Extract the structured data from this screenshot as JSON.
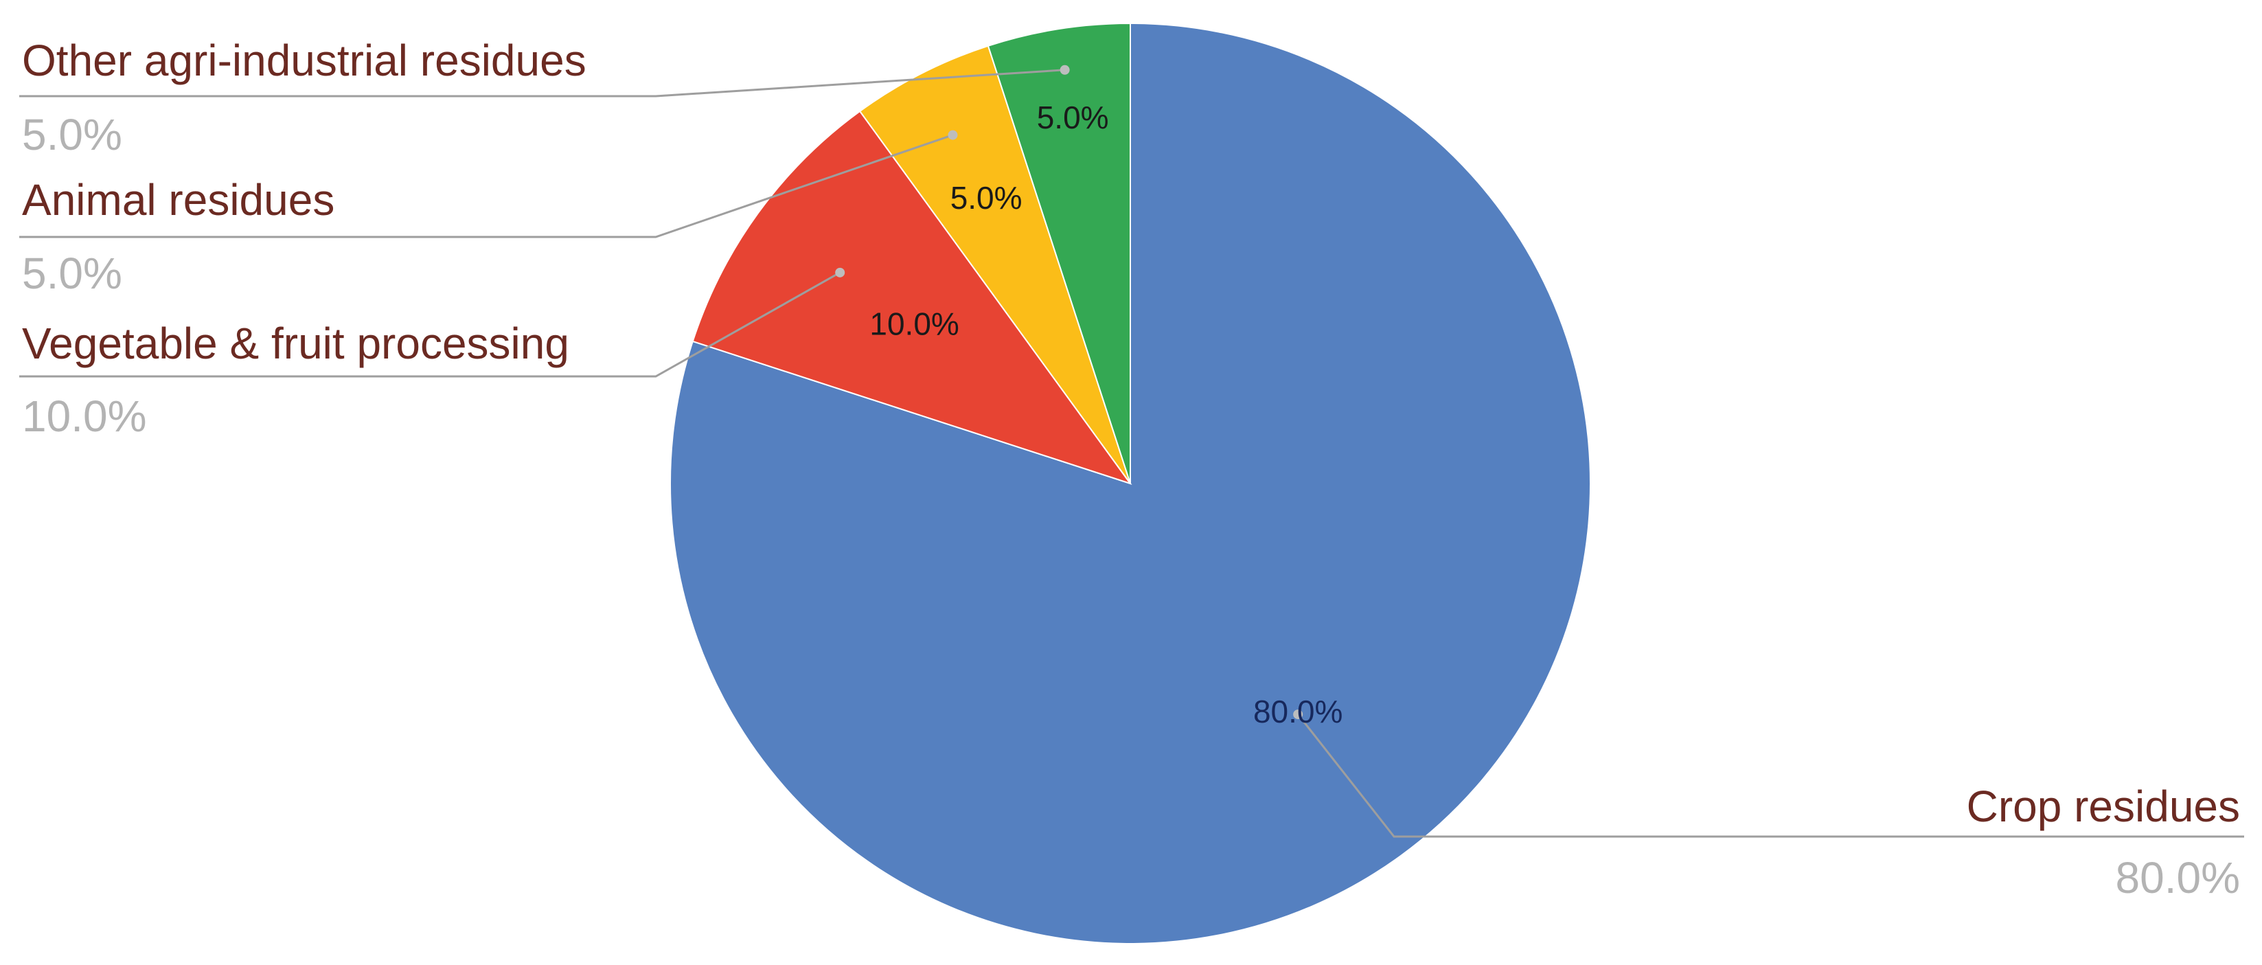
{
  "chart_data": {
    "type": "pie",
    "title": "",
    "start": "top",
    "direction": "clockwise",
    "slices": [
      {
        "name": "Crop residues",
        "value": 80.0,
        "label": "80.0%",
        "color": "#5580c0",
        "label_color": "#17285c"
      },
      {
        "name": "Vegetable & fruit processing",
        "value": 10.0,
        "label": "10.0%",
        "color": "#e74433",
        "label_color": "#1a1a1a"
      },
      {
        "name": "Animal residues",
        "value": 5.0,
        "label": "5.0%",
        "color": "#fbbd18",
        "label_color": "#1a1a1a"
      },
      {
        "name": "Other agri-industrial residues",
        "value": 5.0,
        "label": "5.0%",
        "color": "#34a853",
        "label_color": "#1a1a1a"
      }
    ],
    "legend": "callouts"
  }
}
